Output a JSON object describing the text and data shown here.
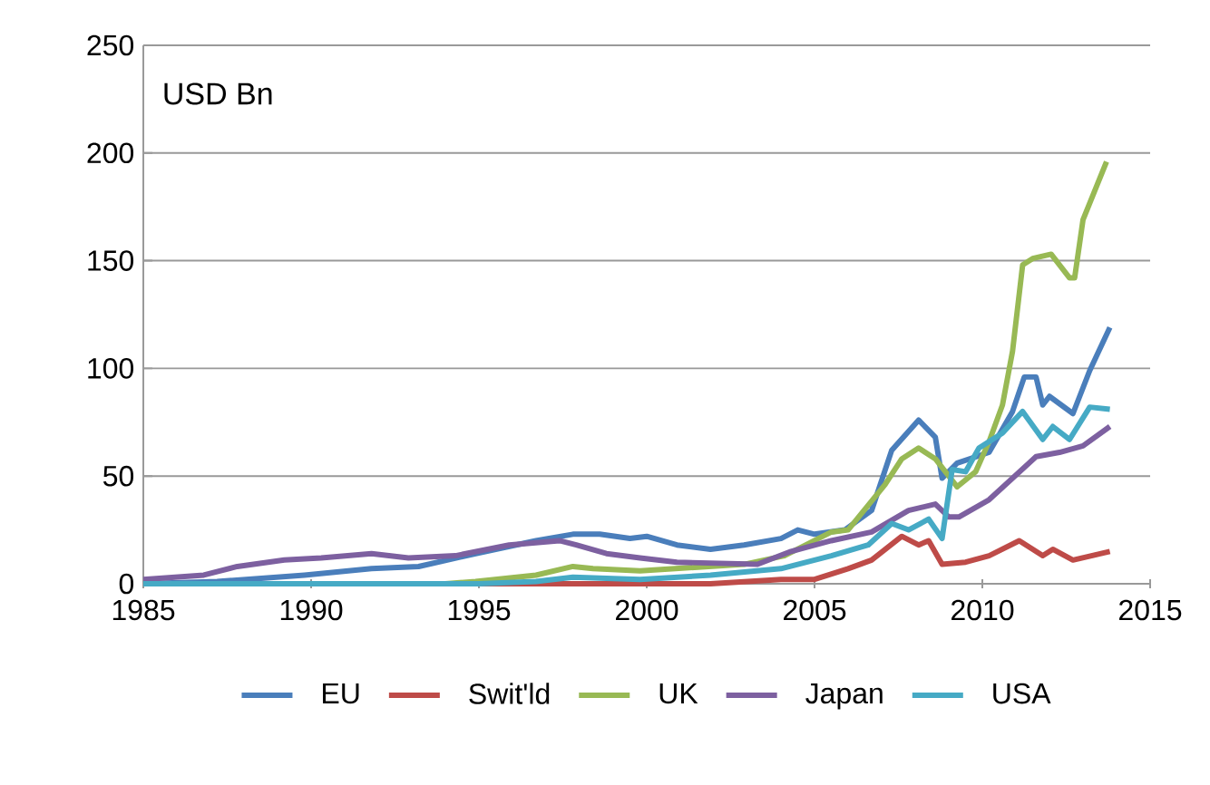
{
  "chart_data": {
    "type": "line",
    "annotations": [
      "USD Bn"
    ],
    "xlim": [
      1985,
      2015
    ],
    "ylim": [
      0,
      250
    ],
    "xticks": [
      1985,
      1990,
      1995,
      2000,
      2005,
      2010,
      2015
    ],
    "yticks": [
      0,
      50,
      100,
      150,
      200,
      250
    ],
    "grid": "y",
    "legend": "bottom",
    "marker": "none",
    "line_style": "solid",
    "series": [
      {
        "name": "EU",
        "color": "#4a7ebb",
        "x": [
          1985,
          1987.2,
          1989.8,
          1991.8,
          1993.2,
          1994.9,
          1996.7,
          1997.8,
          1998.6,
          1999.5,
          2000.0,
          2000.9,
          2001.9,
          2002.9,
          2004.0,
          2004.5,
          2005.0,
          2005.9,
          2006.7,
          2007.3,
          2008.1,
          2008.6,
          2008.8,
          2009.25,
          2010.2,
          2010.9,
          2011.25,
          2011.6,
          2011.8,
          2012.0,
          2012.7,
          2013.2,
          2013.8
        ],
        "values": [
          0,
          1,
          4,
          7,
          8,
          14,
          20,
          23,
          23,
          21,
          22,
          18,
          16,
          18,
          21,
          25,
          23,
          25,
          34,
          62,
          76,
          68,
          49,
          56,
          61,
          80,
          96,
          96,
          83,
          87,
          79,
          99,
          119
        ]
      },
      {
        "name": "Swit'ld",
        "color": "#be4b48",
        "x": [
          1985,
          1995,
          1999.8,
          2001.9,
          2004.0,
          2005.0,
          2006.0,
          2006.7,
          2007.6,
          2008.1,
          2008.4,
          2008.8,
          2009.5,
          2010.2,
          2011.1,
          2011.8,
          2012.1,
          2012.7,
          2013.8
        ],
        "values": [
          0,
          0,
          0,
          0,
          2,
          2,
          7,
          11,
          22,
          18,
          20,
          9,
          10,
          13,
          20,
          13,
          16,
          11,
          15
        ]
      },
      {
        "name": "UK",
        "color": "#98b954",
        "x": [
          1985,
          1994,
          1994.9,
          1996.7,
          1997.8,
          1998.4,
          1999.8,
          2002.9,
          2004.1,
          2005.5,
          2006.0,
          2007.1,
          2007.6,
          2008.1,
          2008.6,
          2009.25,
          2009.8,
          2010.2,
          2010.6,
          2010.9,
          2011.2,
          2011.5,
          2012.05,
          2012.6,
          2012.75,
          2013.0,
          2013.7
        ],
        "values": [
          0,
          0,
          1,
          4,
          8,
          7,
          6,
          9,
          13,
          24,
          25,
          46,
          58,
          63,
          58,
          45,
          52,
          66,
          83,
          108,
          148,
          151,
          153,
          142,
          142,
          169,
          196
        ]
      },
      {
        "name": "Japan",
        "color": "#7d60a0",
        "x": [
          1985,
          1986.8,
          1987.8,
          1989.2,
          1990.3,
          1991.8,
          1992.9,
          1994.3,
          1995.9,
          1997.4,
          1997.9,
          1998.8,
          1999.8,
          2000.9,
          2003.3,
          2004.3,
          2005.5,
          2006.7,
          2007.8,
          2008.6,
          2009.0,
          2009.3,
          2010.2,
          2010.9,
          2011.6,
          2012.3,
          2013.0,
          2013.8
        ],
        "values": [
          2,
          4,
          8,
          11,
          12,
          14,
          12,
          13,
          18,
          20,
          18,
          14,
          12,
          10,
          9,
          15,
          20,
          24,
          34,
          37,
          31,
          31,
          39,
          49,
          59,
          61,
          64,
          73
        ]
      },
      {
        "name": "USA",
        "color": "#46aac5",
        "x": [
          1985,
          1995,
          1996.7,
          1997.8,
          1999.8,
          2001.9,
          2004.0,
          2005.5,
          2006.6,
          2007.3,
          2007.8,
          2008.4,
          2008.8,
          2009.1,
          2009.5,
          2009.9,
          2010.6,
          2011.2,
          2011.8,
          2012.1,
          2012.6,
          2013.2,
          2013.8
        ],
        "values": [
          0,
          0,
          1,
          3,
          2,
          4,
          7,
          13,
          18,
          28,
          25,
          30,
          21,
          53,
          52,
          63,
          70,
          80,
          67,
          73,
          67,
          82,
          81
        ]
      }
    ]
  }
}
